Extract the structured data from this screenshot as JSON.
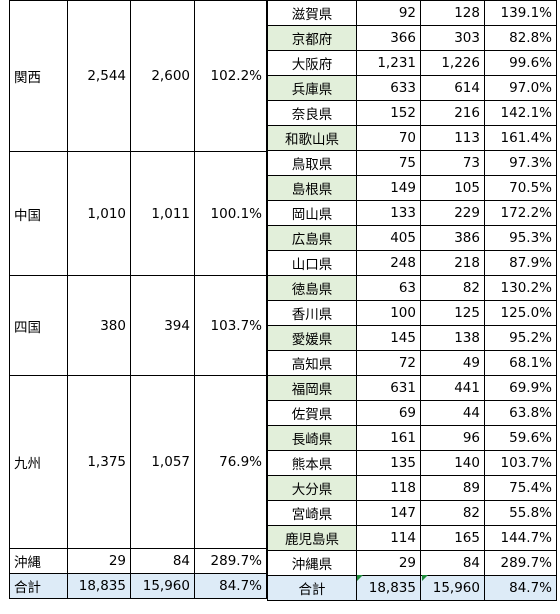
{
  "regions": [
    {
      "name": "関西",
      "a": "2,544",
      "b": "2,600",
      "pct": "102.2%"
    },
    {
      "name": "中国",
      "a": "1,010",
      "b": "1,011",
      "pct": "100.1%"
    },
    {
      "name": "四国",
      "a": "380",
      "b": "394",
      "pct": "103.7%"
    },
    {
      "name": "九州",
      "a": "1,375",
      "b": "1,057",
      "pct": "76.9%"
    },
    {
      "name": "沖縄",
      "a": "29",
      "b": "84",
      "pct": "289.7%"
    },
    {
      "name": "合計",
      "a": "18,835",
      "b": "15,960",
      "pct": "84.7%"
    }
  ],
  "prefectures": [
    {
      "name": "滋賀県",
      "a": "92",
      "b": "128",
      "pct": "139.1%"
    },
    {
      "name": "京都府",
      "a": "366",
      "b": "303",
      "pct": "82.8%"
    },
    {
      "name": "大阪府",
      "a": "1,231",
      "b": "1,226",
      "pct": "99.6%"
    },
    {
      "name": "兵庫県",
      "a": "633",
      "b": "614",
      "pct": "97.0%"
    },
    {
      "name": "奈良県",
      "a": "152",
      "b": "216",
      "pct": "142.1%"
    },
    {
      "name": "和歌山県",
      "a": "70",
      "b": "113",
      "pct": "161.4%"
    },
    {
      "name": "鳥取県",
      "a": "75",
      "b": "73",
      "pct": "97.3%"
    },
    {
      "name": "島根県",
      "a": "149",
      "b": "105",
      "pct": "70.5%"
    },
    {
      "name": "岡山県",
      "a": "133",
      "b": "229",
      "pct": "172.2%"
    },
    {
      "name": "広島県",
      "a": "405",
      "b": "386",
      "pct": "95.3%"
    },
    {
      "name": "山口県",
      "a": "248",
      "b": "218",
      "pct": "87.9%"
    },
    {
      "name": "徳島県",
      "a": "63",
      "b": "82",
      "pct": "130.2%"
    },
    {
      "name": "香川県",
      "a": "100",
      "b": "125",
      "pct": "125.0%"
    },
    {
      "name": "愛媛県",
      "a": "145",
      "b": "138",
      "pct": "95.2%"
    },
    {
      "name": "高知県",
      "a": "72",
      "b": "49",
      "pct": "68.1%"
    },
    {
      "name": "福岡県",
      "a": "631",
      "b": "441",
      "pct": "69.9%"
    },
    {
      "name": "佐賀県",
      "a": "69",
      "b": "44",
      "pct": "63.8%"
    },
    {
      "name": "長崎県",
      "a": "161",
      "b": "96",
      "pct": "59.6%"
    },
    {
      "name": "熊本県",
      "a": "135",
      "b": "140",
      "pct": "103.7%"
    },
    {
      "name": "大分県",
      "a": "118",
      "b": "89",
      "pct": "75.4%"
    },
    {
      "name": "宮崎県",
      "a": "147",
      "b": "82",
      "pct": "55.8%"
    },
    {
      "name": "鹿児島県",
      "a": "114",
      "b": "165",
      "pct": "144.7%"
    },
    {
      "name": "沖縄県",
      "a": "29",
      "b": "84",
      "pct": "289.7%"
    },
    {
      "name": "合計",
      "a": "18,835",
      "b": "15,960",
      "pct": "84.7%"
    }
  ],
  "colors": {
    "highlight": "#e2efda",
    "total": "#ddebf7",
    "corner_marker": "#1e8b3a"
  }
}
